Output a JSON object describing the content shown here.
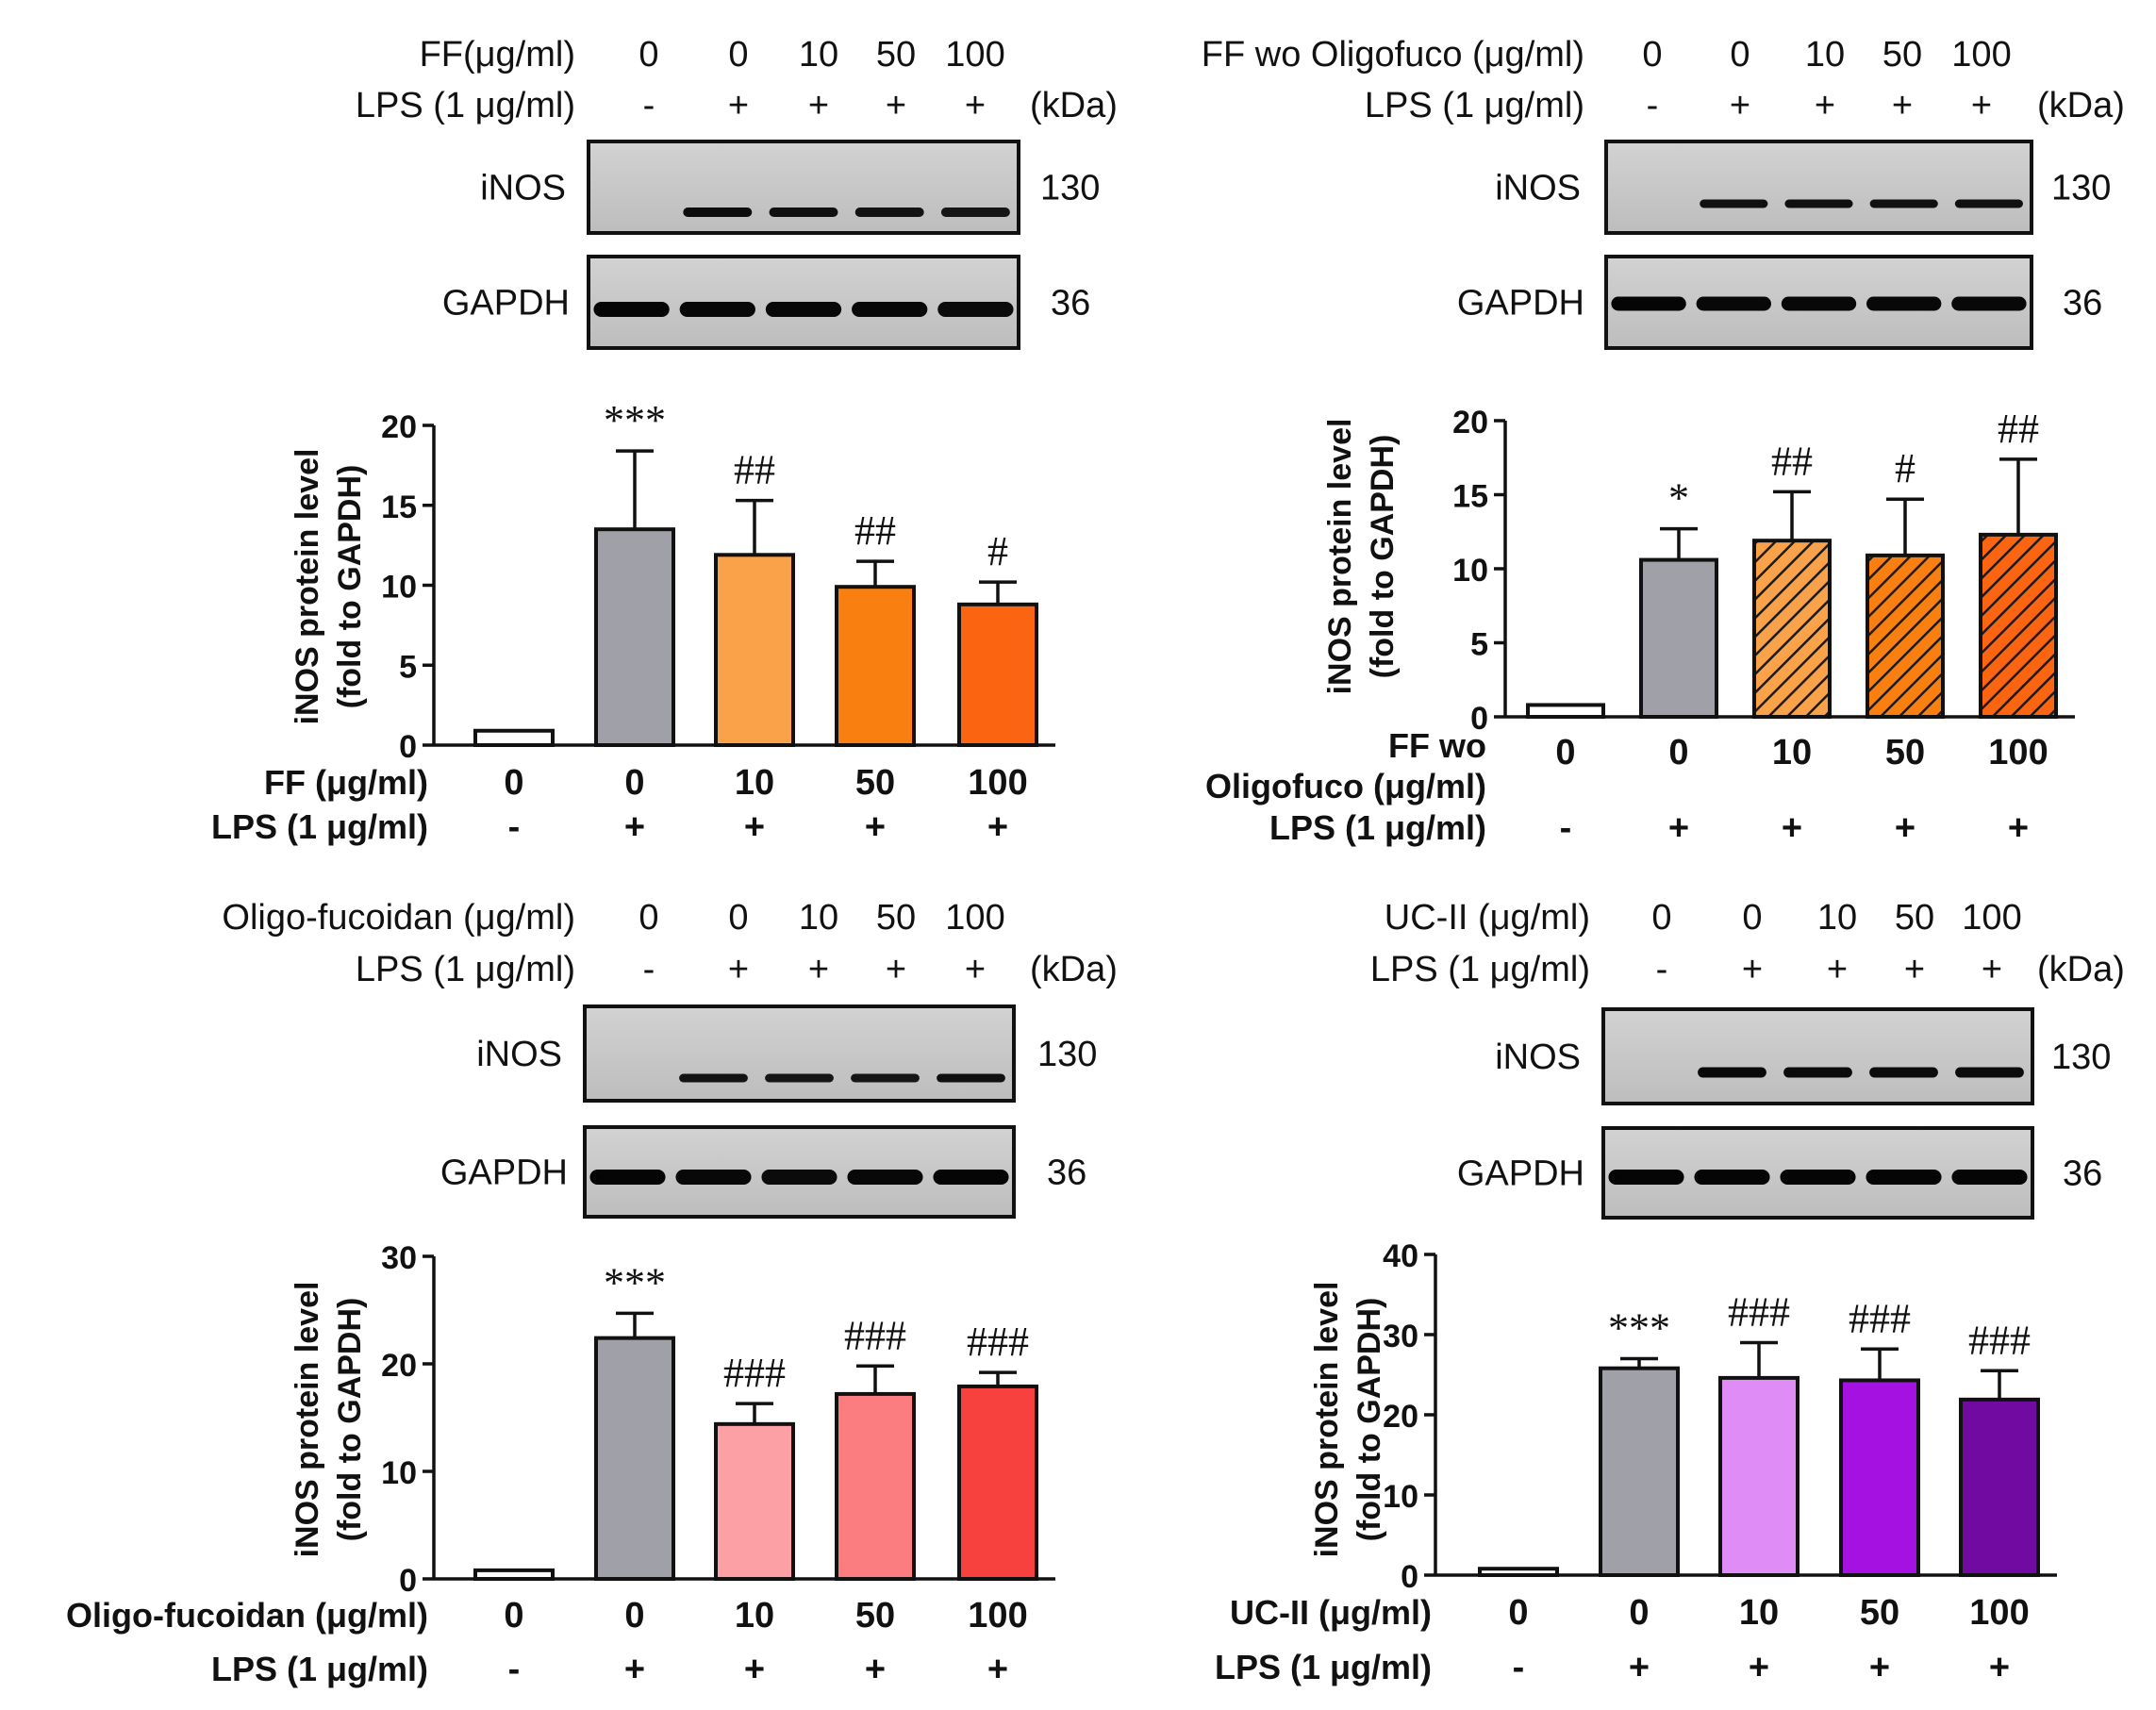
{
  "panels": [
    {
      "blot": {
        "treatment_label": "FF(μg/ml)",
        "lps_label": "LPS (1 μg/ml)",
        "doses": [
          "0",
          "0",
          "10",
          "50",
          "100"
        ],
        "lps": [
          "-",
          "+",
          "+",
          "+",
          "+"
        ],
        "kda_label": "(kDa)",
        "rows": [
          {
            "protein": "iNOS",
            "kda": "130"
          },
          {
            "protein": "GAPDH",
            "kda": "36"
          }
        ]
      },
      "chart_data": {
        "type": "bar",
        "ylabel": [
          "iNOS protein level",
          "(fold to GAPDH)"
        ],
        "ylim": [
          0,
          20
        ],
        "yticks": [
          "0",
          "5",
          "10",
          "15",
          "20"
        ],
        "row_labels": [
          "FF (μg/ml)"
        ],
        "lps_row_label": "LPS (1 μg/ml)",
        "categories": [
          "0",
          "0",
          "10",
          "50",
          "100"
        ],
        "lps": [
          "-",
          "+",
          "+",
          "+",
          "+"
        ],
        "values": [
          0.9,
          13.5,
          11.9,
          9.9,
          8.8
        ],
        "errors": [
          0,
          4.9,
          3.4,
          1.6,
          1.4
        ],
        "significance": [
          "",
          "***",
          "##",
          "##",
          "#"
        ],
        "colors": [
          "#ffffff",
          "#a0a0a8",
          "#f9a24a",
          "#f98010",
          "#fb6410"
        ],
        "hatched": [
          false,
          false,
          false,
          false,
          false
        ]
      }
    },
    {
      "blot": {
        "treatment_label": "FF wo Oligofuco (μg/ml)",
        "lps_label": "LPS (1 μg/ml)",
        "doses": [
          "0",
          "0",
          "10",
          "50",
          "100"
        ],
        "lps": [
          "-",
          "+",
          "+",
          "+",
          "+"
        ],
        "kda_label": "(kDa)",
        "rows": [
          {
            "protein": "iNOS",
            "kda": "130"
          },
          {
            "protein": "GAPDH",
            "kda": "36"
          }
        ]
      },
      "chart_data": {
        "type": "bar",
        "ylabel": [
          "iNOS protein level",
          "(fold to GAPDH)"
        ],
        "ylim": [
          0,
          20
        ],
        "yticks": [
          "0",
          "5",
          "10",
          "15",
          "20"
        ],
        "row_labels": [
          "FF wo",
          "Oligofuco (μg/ml)"
        ],
        "lps_row_label": "LPS (1 μg/ml)",
        "categories": [
          "0",
          "0",
          "10",
          "50",
          "100"
        ],
        "lps": [
          "-",
          "+",
          "+",
          "+",
          "+"
        ],
        "values": [
          0.8,
          10.6,
          11.9,
          10.9,
          12.3
        ],
        "errors": [
          0,
          2.1,
          3.3,
          3.8,
          5.1
        ],
        "significance": [
          "",
          "*",
          "##",
          "#",
          "##"
        ],
        "colors": [
          "#ffffff",
          "#a0a0a8",
          "#f9a24a",
          "#f98010",
          "#fb6410"
        ],
        "hatched": [
          false,
          false,
          true,
          true,
          true
        ]
      }
    },
    {
      "blot": {
        "treatment_label": "Oligo-fucoidan (μg/ml)",
        "lps_label": "LPS (1 μg/ml)",
        "doses": [
          "0",
          "0",
          "10",
          "50",
          "100"
        ],
        "lps": [
          "-",
          "+",
          "+",
          "+",
          "+"
        ],
        "kda_label": "(kDa)",
        "rows": [
          {
            "protein": "iNOS",
            "kda": "130"
          },
          {
            "protein": "GAPDH",
            "kda": "36"
          }
        ]
      },
      "chart_data": {
        "type": "bar",
        "ylabel": [
          "iNOS protein level",
          "(fold to GAPDH)"
        ],
        "ylim": [
          0,
          30
        ],
        "yticks": [
          "0",
          "10",
          "20",
          "30"
        ],
        "row_labels": [
          "Oligo-fucoidan (μg/ml)"
        ],
        "lps_row_label": "LPS (1 μg/ml)",
        "categories": [
          "0",
          "0",
          "10",
          "50",
          "100"
        ],
        "lps": [
          "-",
          "+",
          "+",
          "+",
          "+"
        ],
        "values": [
          0.8,
          22.4,
          14.4,
          17.2,
          17.9
        ],
        "errors": [
          0,
          2.3,
          1.9,
          2.6,
          1.3
        ],
        "significance": [
          "",
          "***",
          "###",
          "###",
          "###"
        ],
        "colors": [
          "#ffffff",
          "#a0a0a8",
          "#fca0a6",
          "#fb7d80",
          "#f7413f"
        ],
        "hatched": [
          false,
          false,
          false,
          false,
          false
        ]
      }
    },
    {
      "blot": {
        "treatment_label": "UC-II (μg/ml)",
        "lps_label": "LPS (1 μg/ml)",
        "doses": [
          "0",
          "0",
          "10",
          "50",
          "100"
        ],
        "lps": [
          "-",
          "+",
          "+",
          "+",
          "+"
        ],
        "kda_label": "(kDa)",
        "rows": [
          {
            "protein": "iNOS",
            "kda": "130"
          },
          {
            "protein": "GAPDH",
            "kda": "36"
          }
        ]
      },
      "chart_data": {
        "type": "bar",
        "ylabel": [
          "iNOS protein level",
          "(fold to GAPDH)"
        ],
        "ylim": [
          0,
          40
        ],
        "yticks": [
          "0",
          "10",
          "20",
          "30",
          "40"
        ],
        "row_labels": [
          "UC-II (μg/ml)"
        ],
        "lps_row_label": "LPS (1 μg/ml)",
        "categories": [
          "0",
          "0",
          "10",
          "50",
          "100"
        ],
        "lps": [
          "-",
          "+",
          "+",
          "+",
          "+"
        ],
        "values": [
          0.8,
          25.8,
          24.6,
          24.3,
          21.9
        ],
        "errors": [
          0,
          1.2,
          4.4,
          3.9,
          3.6
        ],
        "significance": [
          "",
          "***",
          "###",
          "###",
          "###"
        ],
        "colors": [
          "#ffffff",
          "#a0a0a8",
          "#df8cf6",
          "#a411e0",
          "#700aa0"
        ],
        "hatched": [
          false,
          false,
          false,
          false,
          false
        ]
      }
    }
  ]
}
